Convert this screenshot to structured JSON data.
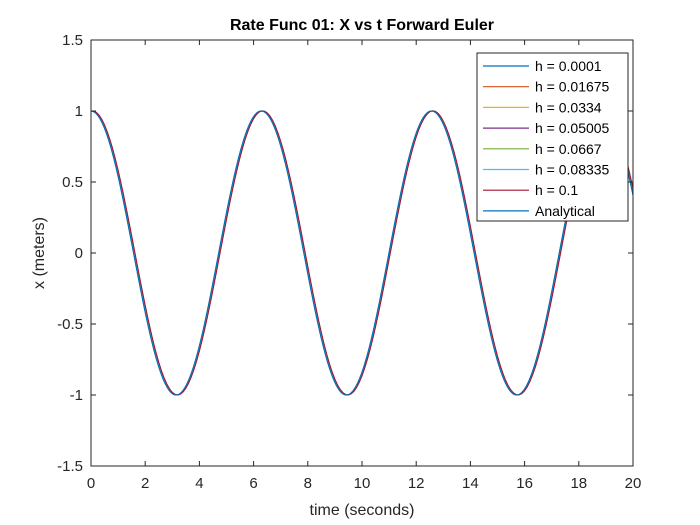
{
  "chart_data": {
    "type": "line",
    "title": "Rate Func 01: X vs t Forward Euler",
    "xlabel": "time (seconds)",
    "ylabel": "x (meters)",
    "xlim": [
      0,
      20
    ],
    "ylim": [
      -1.5,
      1.5
    ],
    "xticks": [
      0,
      2,
      4,
      6,
      8,
      10,
      12,
      14,
      16,
      18,
      20
    ],
    "yticks": [
      -1.5,
      -1,
      -0.5,
      0,
      0.5,
      1,
      1.5
    ],
    "xtick_labels": [
      "0",
      "2",
      "4",
      "6",
      "8",
      "10",
      "12",
      "14",
      "16",
      "18",
      "20"
    ],
    "ytick_labels": [
      "-1.5",
      "-1",
      "-0.5",
      "0",
      "0.5",
      "1",
      "1.5"
    ],
    "grid": false,
    "legend_position": "top-right",
    "function": "x = cos(t)",
    "t_range": [
      0,
      20
    ],
    "series": [
      {
        "name": "h = 0.0001",
        "color": "#0072BD",
        "h": 0.0001
      },
      {
        "name": "h = 0.01675",
        "color": "#D95319",
        "h": 0.01675
      },
      {
        "name": "h = 0.0334",
        "color": "#EDB120",
        "h": 0.0334
      },
      {
        "name": "h = 0.05005",
        "color": "#7E2F8E",
        "h": 0.05005
      },
      {
        "name": "h = 0.0667",
        "color": "#77AC30",
        "h": 0.0667
      },
      {
        "name": "h = 0.08335",
        "color": "#4DBEEE",
        "h": 0.08335
      },
      {
        "name": "h = 0.1",
        "color": "#A2142F",
        "h": 0.1
      },
      {
        "name": "Analytical",
        "color": "#0072BD",
        "h": null
      }
    ]
  }
}
